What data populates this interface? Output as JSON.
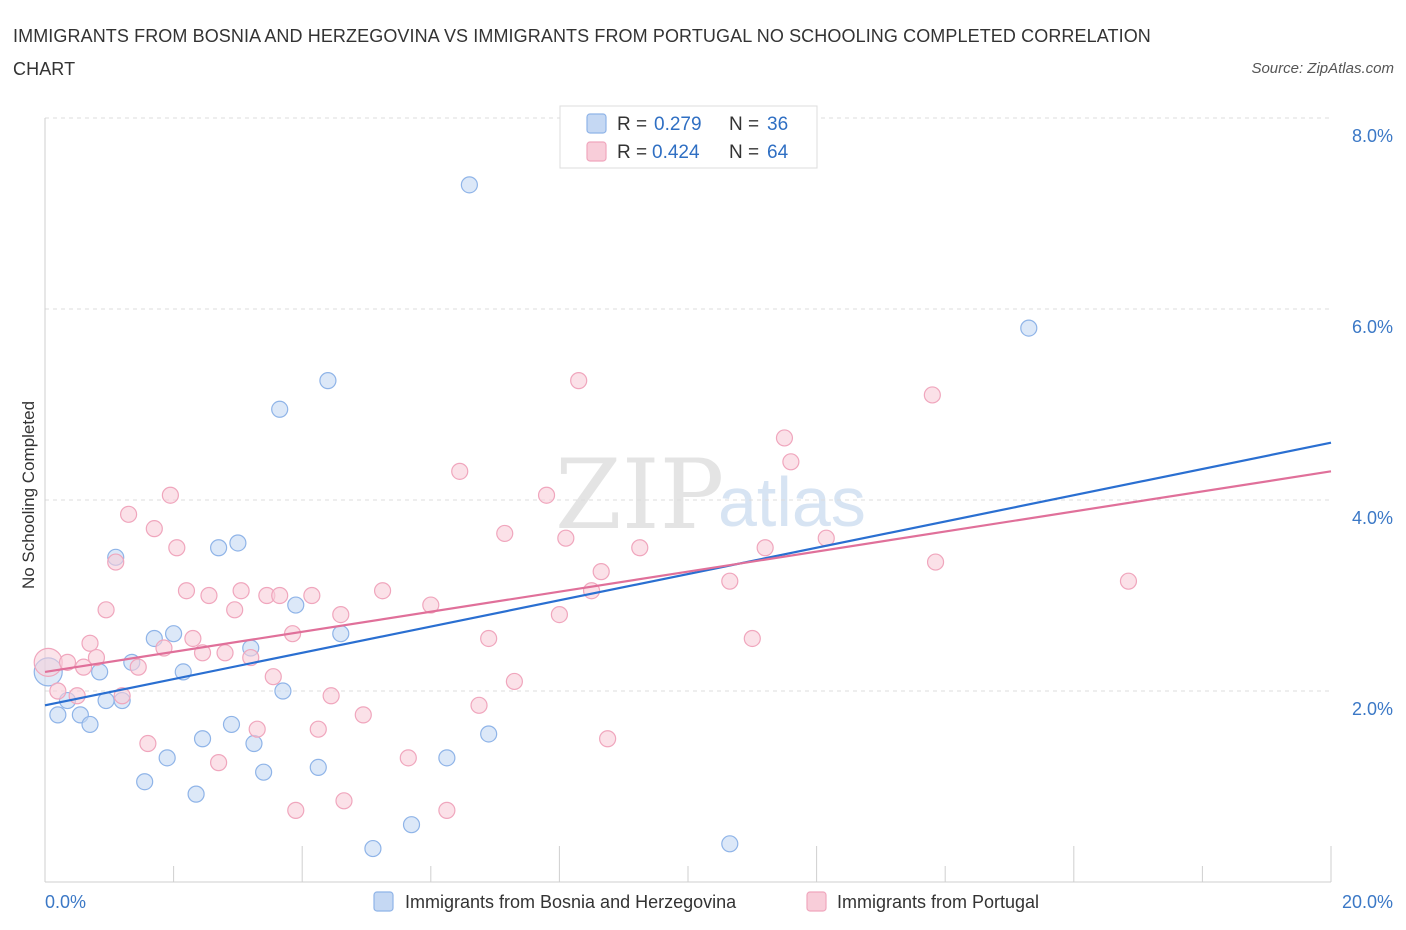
{
  "title": "IMMIGRANTS FROM BOSNIA AND HERZEGOVINA VS IMMIGRANTS FROM PORTUGAL NO SCHOOLING COMPLETED CORRELATION CHART",
  "source": "Source: ZipAtlas.com",
  "watermark": {
    "zip": "ZIP",
    "atlas": "atlas"
  },
  "legend": {
    "rows": [
      {
        "r_label": "R =",
        "r_value": "0.279",
        "n_label": "N =",
        "n_value": "36"
      },
      {
        "r_label": "R =",
        "r_value": "0.424",
        "n_label": "N =",
        "n_value": "64"
      }
    ]
  },
  "chart_data": {
    "type": "scatter",
    "title": "IMMIGRANTS FROM BOSNIA AND HERZEGOVINA VS IMMIGRANTS FROM PORTUGAL NO SCHOOLING COMPLETED CORRELATION CHART",
    "xlabel": "",
    "ylabel": "No Schooling Completed",
    "xlim": [
      0,
      20
    ],
    "ylim": [
      0,
      8
    ],
    "x_tick_labels": [
      "0.0%",
      "20.0%"
    ],
    "y_ticks": [
      2,
      4,
      6,
      8
    ],
    "y_tick_labels": [
      "2.0%",
      "4.0%",
      "6.0%",
      "8.0%"
    ],
    "grid": true,
    "legend_position": "top-center",
    "series": [
      {
        "name": "Immigrants from Bosnia and Herzegovina",
        "color": "#8fb4e8",
        "fill": "#c5d8f3",
        "line_color": "#2a6fd1",
        "trend": {
          "x": [
            0,
            20
          ],
          "y": [
            1.85,
            4.6
          ]
        },
        "points": [
          [
            0.05,
            2.2
          ],
          [
            0.2,
            1.75
          ],
          [
            0.35,
            1.9
          ],
          [
            0.55,
            1.75
          ],
          [
            0.7,
            1.65
          ],
          [
            0.85,
            2.2
          ],
          [
            0.95,
            1.9
          ],
          [
            1.1,
            3.4
          ],
          [
            1.2,
            1.9
          ],
          [
            1.35,
            2.3
          ],
          [
            1.55,
            1.05
          ],
          [
            1.7,
            2.55
          ],
          [
            1.9,
            1.3
          ],
          [
            2.0,
            2.6
          ],
          [
            2.15,
            2.2
          ],
          [
            2.35,
            0.92
          ],
          [
            2.45,
            1.5
          ],
          [
            2.7,
            3.5
          ],
          [
            2.9,
            1.65
          ],
          [
            3.0,
            3.55
          ],
          [
            3.2,
            2.45
          ],
          [
            3.25,
            1.45
          ],
          [
            3.4,
            1.15
          ],
          [
            3.65,
            4.95
          ],
          [
            3.7,
            2.0
          ],
          [
            3.9,
            2.9
          ],
          [
            4.25,
            1.2
          ],
          [
            4.4,
            5.25
          ],
          [
            4.6,
            2.6
          ],
          [
            5.1,
            0.35
          ],
          [
            5.7,
            0.6
          ],
          [
            6.25,
            1.3
          ],
          [
            6.6,
            7.3
          ],
          [
            6.9,
            1.55
          ],
          [
            10.65,
            0.4
          ],
          [
            15.3,
            5.8
          ]
        ]
      },
      {
        "name": "Immigrants from Portugal",
        "color": "#f0a6bd",
        "fill": "#f8cdd9",
        "line_color": "#e0709a",
        "trend": {
          "x": [
            0,
            20
          ],
          "y": [
            2.2,
            4.3
          ]
        },
        "points": [
          [
            0.05,
            2.3
          ],
          [
            0.2,
            2.0
          ],
          [
            0.35,
            2.3
          ],
          [
            0.5,
            1.95
          ],
          [
            0.6,
            2.25
          ],
          [
            0.7,
            2.5
          ],
          [
            0.8,
            2.35
          ],
          [
            0.95,
            2.85
          ],
          [
            1.1,
            3.35
          ],
          [
            1.2,
            1.95
          ],
          [
            1.3,
            3.85
          ],
          [
            1.45,
            2.25
          ],
          [
            1.6,
            1.45
          ],
          [
            1.7,
            3.7
          ],
          [
            1.85,
            2.45
          ],
          [
            1.95,
            4.05
          ],
          [
            2.05,
            3.5
          ],
          [
            2.2,
            3.05
          ],
          [
            2.3,
            2.55
          ],
          [
            2.45,
            2.4
          ],
          [
            2.55,
            3.0
          ],
          [
            2.7,
            1.25
          ],
          [
            2.8,
            2.4
          ],
          [
            2.95,
            2.85
          ],
          [
            3.05,
            3.05
          ],
          [
            3.2,
            2.35
          ],
          [
            3.3,
            1.6
          ],
          [
            3.45,
            3.0
          ],
          [
            3.55,
            2.15
          ],
          [
            3.65,
            3.0
          ],
          [
            3.85,
            2.6
          ],
          [
            3.9,
            0.75
          ],
          [
            4.15,
            3.0
          ],
          [
            4.25,
            1.6
          ],
          [
            4.45,
            1.95
          ],
          [
            4.6,
            2.8
          ],
          [
            4.65,
            0.85
          ],
          [
            4.95,
            1.75
          ],
          [
            5.25,
            3.05
          ],
          [
            5.65,
            1.3
          ],
          [
            6.0,
            2.9
          ],
          [
            6.25,
            0.75
          ],
          [
            6.45,
            4.3
          ],
          [
            6.75,
            1.85
          ],
          [
            6.9,
            2.55
          ],
          [
            7.15,
            3.65
          ],
          [
            7.3,
            2.1
          ],
          [
            7.8,
            4.05
          ],
          [
            8.0,
            2.8
          ],
          [
            8.1,
            3.6
          ],
          [
            8.3,
            5.25
          ],
          [
            8.5,
            3.05
          ],
          [
            8.65,
            3.25
          ],
          [
            8.75,
            1.5
          ],
          [
            9.25,
            3.5
          ],
          [
            10.65,
            3.15
          ],
          [
            11.0,
            2.55
          ],
          [
            11.2,
            3.5
          ],
          [
            11.5,
            4.65
          ],
          [
            11.6,
            4.4
          ],
          [
            12.15,
            3.6
          ],
          [
            13.8,
            5.1
          ],
          [
            13.85,
            3.35
          ],
          [
            16.85,
            3.15
          ]
        ]
      }
    ]
  }
}
